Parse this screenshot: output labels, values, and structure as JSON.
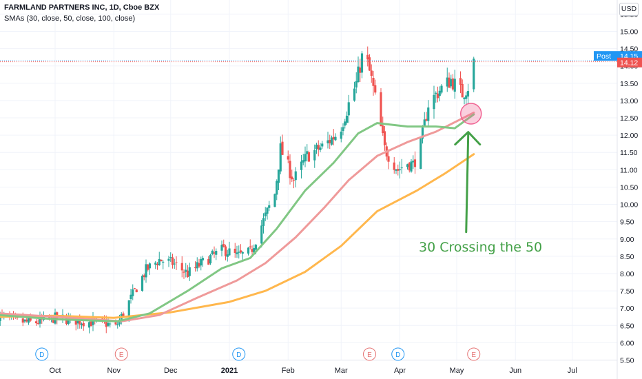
{
  "header": {
    "title": "FARMLAND PARTNERS INC, 1D, Cboe BZX",
    "indicator": "SMAs (30, close, 50, close, 100, close)"
  },
  "currency": "USD",
  "price_labels": {
    "post_label": "Post",
    "post_value": "14.15",
    "last_value": "14.12"
  },
  "annotation": {
    "text": "30 Crossing the 50"
  },
  "events": [
    {
      "letter": "D",
      "date": "2020-09-24",
      "color": "#2196f3"
    },
    {
      "letter": "E",
      "date": "2020-11-05",
      "color": "#e57373"
    },
    {
      "letter": "D",
      "date": "2021-01-06",
      "color": "#2196f3"
    },
    {
      "letter": "E",
      "date": "2021-03-16",
      "color": "#e57373"
    },
    {
      "letter": "D",
      "date": "2021-03-31",
      "color": "#2196f3"
    },
    {
      "letter": "E",
      "date": "2021-05-10",
      "color": "#e57373"
    }
  ],
  "colors": {
    "up": "#26a69a",
    "down": "#ef5350",
    "sma30": "#81c784",
    "sma50": "#ef9a9a",
    "sma100": "#ffb74d",
    "post_bg": "#2196f3",
    "last_bg": "#ef5350",
    "annotation": "#43a047",
    "circle": "#f06292"
  },
  "chart_data": {
    "type": "candlestick",
    "x_ticks": [
      "Oct",
      "Nov",
      "Dec",
      "2021",
      "Feb",
      "Mar",
      "Apr",
      "May",
      "Jun",
      "Jul"
    ],
    "y_ticks": [
      "5.50",
      "6.00",
      "6.50",
      "7.00",
      "7.50",
      "8.00",
      "8.50",
      "9.00",
      "9.50",
      "10.00",
      "10.50",
      "11.00",
      "11.50",
      "12.00",
      "12.50",
      "13.00",
      "13.50",
      "14.00",
      "14.50",
      "15.00",
      "15.50"
    ],
    "ylim": [
      5.4,
      15.55
    ],
    "price_anchors": [
      [
        "2020-09-01",
        6.78
      ],
      [
        "2020-09-10",
        6.62
      ],
      [
        "2020-09-20",
        6.58
      ],
      [
        "2020-10-01",
        6.72
      ],
      [
        "2020-10-15",
        6.62
      ],
      [
        "2020-10-28",
        6.55
      ],
      [
        "2020-11-02",
        6.45
      ],
      [
        "2020-11-06",
        6.85
      ],
      [
        "2020-11-12",
        7.5
      ],
      [
        "2020-11-18",
        8.1
      ],
      [
        "2020-11-25",
        8.4
      ],
      [
        "2020-12-02",
        8.3
      ],
      [
        "2020-12-10",
        8.0
      ],
      [
        "2020-12-20",
        8.4
      ],
      [
        "2020-12-29",
        8.7
      ],
      [
        "2021-01-05",
        8.5
      ],
      [
        "2021-01-12",
        8.6
      ],
      [
        "2021-01-18",
        9.4
      ],
      [
        "2021-01-25",
        10.3
      ],
      [
        "2021-01-28",
        11.6
      ],
      [
        "2021-02-04",
        10.7
      ],
      [
        "2021-02-11",
        11.4
      ],
      [
        "2021-02-20",
        11.7
      ],
      [
        "2021-02-28",
        12.1
      ],
      [
        "2021-03-05",
        12.9
      ],
      [
        "2021-03-09",
        13.5
      ],
      [
        "2021-03-13",
        14.5
      ],
      [
        "2021-03-17",
        13.6
      ],
      [
        "2021-03-20",
        12.8
      ],
      [
        "2021-03-24",
        11.6
      ],
      [
        "2021-03-31",
        11.0
      ],
      [
        "2021-04-05",
        11.2
      ],
      [
        "2021-04-08",
        11.15
      ],
      [
        "2021-04-12",
        11.7
      ],
      [
        "2021-04-16",
        12.9
      ],
      [
        "2021-04-22",
        13.3
      ],
      [
        "2021-04-28",
        13.6
      ],
      [
        "2021-05-04",
        13.2
      ],
      [
        "2021-05-07",
        13.4
      ],
      [
        "2021-05-10",
        14.12
      ]
    ],
    "sma30": [
      [
        "2020-09-01",
        6.8
      ],
      [
        "2020-10-01",
        6.68
      ],
      [
        "2020-11-03",
        6.62
      ],
      [
        "2020-11-20",
        6.85
      ],
      [
        "2020-12-10",
        7.5
      ],
      [
        "2020-12-28",
        8.15
      ],
      [
        "2021-01-12",
        8.45
      ],
      [
        "2021-01-26",
        9.3
      ],
      [
        "2021-02-10",
        10.4
      ],
      [
        "2021-02-25",
        11.2
      ],
      [
        "2021-03-10",
        12.05
      ],
      [
        "2021-03-20",
        12.35
      ],
      [
        "2021-04-05",
        12.25
      ],
      [
        "2021-04-20",
        12.25
      ],
      [
        "2021-04-30",
        12.2
      ],
      [
        "2021-05-10",
        12.6
      ]
    ],
    "sma50": [
      [
        "2020-09-01",
        6.85
      ],
      [
        "2020-10-01",
        6.75
      ],
      [
        "2020-11-05",
        6.62
      ],
      [
        "2020-11-25",
        6.8
      ],
      [
        "2020-12-15",
        7.3
      ],
      [
        "2021-01-05",
        7.8
      ],
      [
        "2021-01-20",
        8.3
      ],
      [
        "2021-02-05",
        9.05
      ],
      [
        "2021-02-20",
        9.9
      ],
      [
        "2021-03-05",
        10.7
      ],
      [
        "2021-03-20",
        11.4
      ],
      [
        "2021-04-05",
        11.8
      ],
      [
        "2021-04-20",
        12.1
      ],
      [
        "2021-05-10",
        12.65
      ]
    ],
    "sma100": [
      [
        "2020-09-01",
        6.75
      ],
      [
        "2020-10-01",
        6.78
      ],
      [
        "2020-11-01",
        6.72
      ],
      [
        "2020-12-01",
        6.88
      ],
      [
        "2021-01-01",
        7.18
      ],
      [
        "2021-01-20",
        7.5
      ],
      [
        "2021-02-10",
        8.05
      ],
      [
        "2021-03-01",
        8.8
      ],
      [
        "2021-03-20",
        9.8
      ],
      [
        "2021-04-10",
        10.4
      ],
      [
        "2021-04-25",
        10.9
      ],
      [
        "2021-05-10",
        11.45
      ]
    ]
  }
}
